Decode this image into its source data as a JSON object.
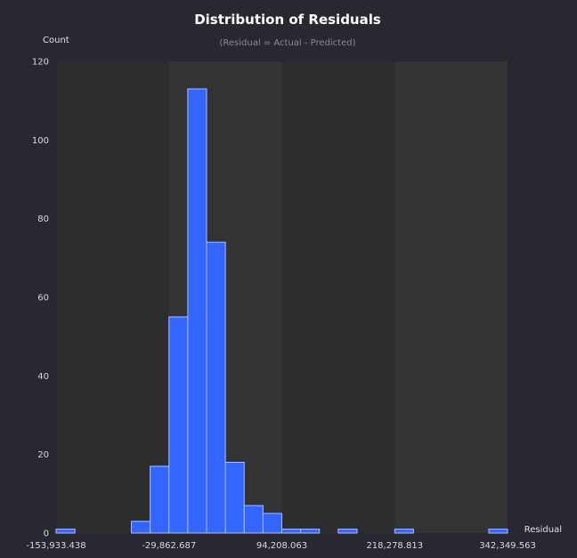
{
  "chart_data": {
    "type": "bar",
    "title": "Distribution of Residuals",
    "subtitle": "(Residual = Actual - Predicted)",
    "xlabel": "Residual",
    "ylabel": "Count",
    "ylim": [
      0,
      120
    ],
    "yticks": [
      0,
      20,
      40,
      60,
      80,
      100,
      120
    ],
    "xlim": [
      -153933.438,
      342349.563
    ],
    "xtick_values": [
      -153933.438,
      -29862.687,
      94208.063,
      218278.813,
      342349.563
    ],
    "xtick_labels": [
      "-153,933.438",
      "-29,862.687",
      "94,208.063",
      "218,278.813",
      "342,349.563"
    ],
    "bin_count": 24,
    "values": [
      1,
      0,
      0,
      0,
      3,
      17,
      55,
      113,
      74,
      18,
      7,
      5,
      1,
      1,
      0,
      1,
      0,
      0,
      1,
      0,
      0,
      0,
      0,
      1
    ],
    "colors": {
      "background": "#282830",
      "band_dark": "#2d2d2d",
      "band_light": "#333333",
      "bar_fill": "#3366ff",
      "bar_stroke": "#a9bbff"
    }
  }
}
